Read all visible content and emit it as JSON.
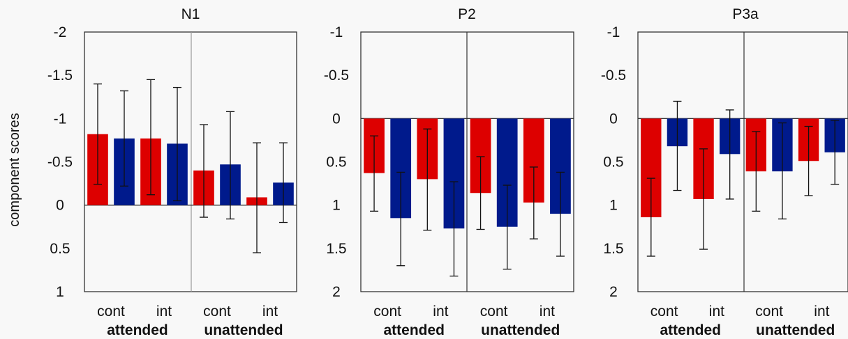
{
  "ylabel": "component scores",
  "colors": {
    "cont": "#dd0000",
    "int": "#001a8c",
    "errorbar": "#111111",
    "frame": "#333333",
    "background": "#f8f8f8"
  },
  "chart_data": [
    {
      "type": "bar",
      "title": "N1",
      "y_inverted": true,
      "ylim": [
        1,
        -2
      ],
      "yticks": [
        -2,
        -1.5,
        -1,
        -0.5,
        0,
        0.5,
        1
      ],
      "ytick_labels": [
        "-2",
        "-1.5",
        "-1",
        "-0.5",
        "0",
        "0.5",
        "1"
      ],
      "categories": [
        "cont",
        "cont",
        "int",
        "int",
        "cont",
        "cont",
        "int",
        "int"
      ],
      "category_labels": [
        "cont",
        "int",
        "cont",
        "int"
      ],
      "groups": [
        "attended",
        "unattended"
      ],
      "bars": [
        {
          "group": "attended",
          "label": "cont",
          "color": "red",
          "value": -0.82,
          "err_low": -1.4,
          "err_high": -0.24
        },
        {
          "group": "attended",
          "label": "cont",
          "color": "blue",
          "value": -0.77,
          "err_low": -1.32,
          "err_high": -0.22
        },
        {
          "group": "attended",
          "label": "int",
          "color": "red",
          "value": -0.77,
          "err_low": -1.45,
          "err_high": -0.12
        },
        {
          "group": "attended",
          "label": "int",
          "color": "blue",
          "value": -0.71,
          "err_low": -1.36,
          "err_high": -0.05
        },
        {
          "group": "unattended",
          "label": "cont",
          "color": "red",
          "value": -0.4,
          "err_low": -0.93,
          "err_high": 0.14
        },
        {
          "group": "unattended",
          "label": "cont",
          "color": "blue",
          "value": -0.47,
          "err_low": -1.08,
          "err_high": 0.16
        },
        {
          "group": "unattended",
          "label": "int",
          "color": "red",
          "value": -0.09,
          "err_low": -0.72,
          "err_high": 0.55
        },
        {
          "group": "unattended",
          "label": "int",
          "color": "blue",
          "value": -0.26,
          "err_low": -0.72,
          "err_high": 0.2
        }
      ]
    },
    {
      "type": "bar",
      "title": "P2",
      "y_inverted": true,
      "ylim": [
        2,
        -1
      ],
      "yticks": [
        -1,
        -0.5,
        0,
        0.5,
        1,
        1.5,
        2
      ],
      "ytick_labels": [
        "-1",
        "-0.5",
        "0",
        "0.5",
        "1",
        "1.5",
        "2"
      ],
      "categories": [
        "cont",
        "cont",
        "int",
        "int",
        "cont",
        "cont",
        "int",
        "int"
      ],
      "category_labels": [
        "cont",
        "int",
        "cont",
        "int"
      ],
      "groups": [
        "attended",
        "unattended"
      ],
      "bars": [
        {
          "group": "attended",
          "label": "cont",
          "color": "red",
          "value": 0.63,
          "err_low": 0.2,
          "err_high": 1.07
        },
        {
          "group": "attended",
          "label": "cont",
          "color": "blue",
          "value": 1.15,
          "err_low": 0.62,
          "err_high": 1.7
        },
        {
          "group": "attended",
          "label": "int",
          "color": "red",
          "value": 0.7,
          "err_low": 0.12,
          "err_high": 1.29
        },
        {
          "group": "attended",
          "label": "int",
          "color": "blue",
          "value": 1.27,
          "err_low": 0.73,
          "err_high": 1.82
        },
        {
          "group": "unattended",
          "label": "cont",
          "color": "red",
          "value": 0.86,
          "err_low": 0.44,
          "err_high": 1.28
        },
        {
          "group": "unattended",
          "label": "cont",
          "color": "blue",
          "value": 1.25,
          "err_low": 0.77,
          "err_high": 1.74
        },
        {
          "group": "unattended",
          "label": "int",
          "color": "red",
          "value": 0.97,
          "err_low": 0.56,
          "err_high": 1.39
        },
        {
          "group": "unattended",
          "label": "int",
          "color": "blue",
          "value": 1.1,
          "err_low": 0.62,
          "err_high": 1.59
        }
      ]
    },
    {
      "type": "bar",
      "title": "P3a",
      "y_inverted": true,
      "ylim": [
        2,
        -1
      ],
      "yticks": [
        -1,
        -0.5,
        0,
        0.5,
        1,
        1.5,
        2
      ],
      "ytick_labels": [
        "-1",
        "-0.5",
        "0",
        "0.5",
        "1",
        "1.5",
        "2"
      ],
      "categories": [
        "cont",
        "cont",
        "int",
        "int",
        "cont",
        "cont",
        "int",
        "int"
      ],
      "category_labels": [
        "cont",
        "int",
        "cont",
        "int"
      ],
      "groups": [
        "attended",
        "unattended"
      ],
      "bars": [
        {
          "group": "attended",
          "label": "cont",
          "color": "red",
          "value": 1.14,
          "err_low": 0.69,
          "err_high": 1.59
        },
        {
          "group": "attended",
          "label": "cont",
          "color": "blue",
          "value": 0.32,
          "err_low": -0.2,
          "err_high": 0.83
        },
        {
          "group": "attended",
          "label": "int",
          "color": "red",
          "value": 0.93,
          "err_low": 0.35,
          "err_high": 1.51
        },
        {
          "group": "attended",
          "label": "int",
          "color": "blue",
          "value": 0.41,
          "err_low": -0.1,
          "err_high": 0.93
        },
        {
          "group": "unattended",
          "label": "cont",
          "color": "red",
          "value": 0.61,
          "err_low": 0.15,
          "err_high": 1.07
        },
        {
          "group": "unattended",
          "label": "cont",
          "color": "blue",
          "value": 0.61,
          "err_low": 0.05,
          "err_high": 1.16
        },
        {
          "group": "unattended",
          "label": "int",
          "color": "red",
          "value": 0.49,
          "err_low": 0.09,
          "err_high": 0.89
        },
        {
          "group": "unattended",
          "label": "int",
          "color": "blue",
          "value": 0.39,
          "err_low": 0.02,
          "err_high": 0.76
        }
      ]
    }
  ]
}
